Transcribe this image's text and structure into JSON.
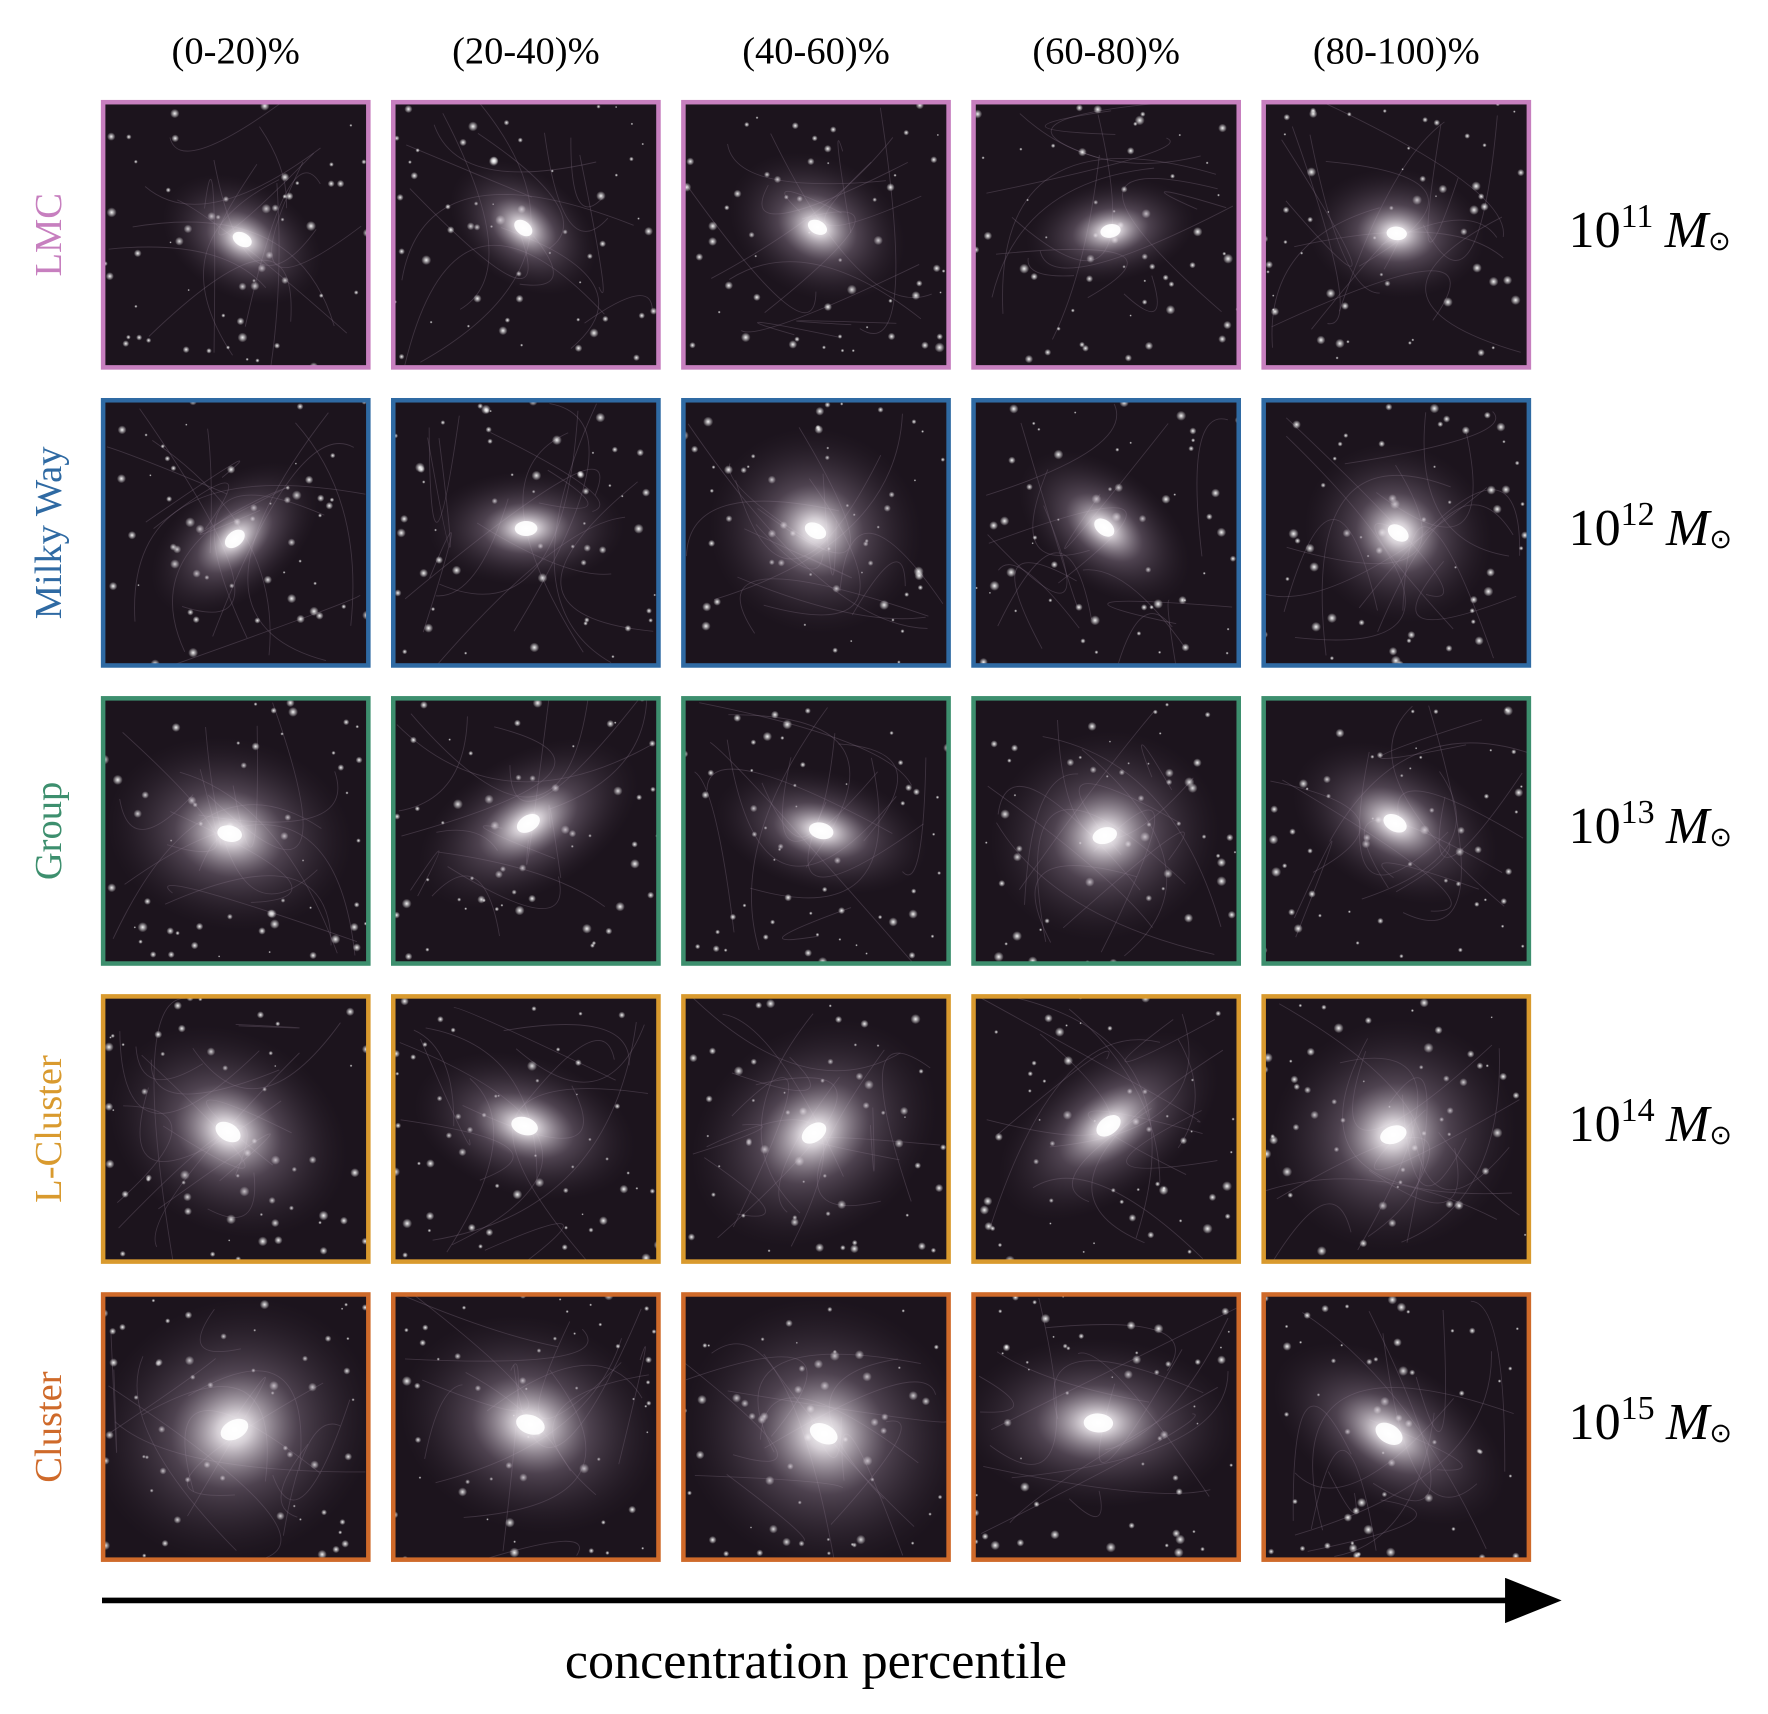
{
  "columns": [
    "(0-20)%",
    "(20-40)%",
    "(40-60)%",
    "(60-80)%",
    "(80-100)%"
  ],
  "rows": [
    {
      "label": "LMC",
      "color": "#c77fbf",
      "mass": {
        "base": "10",
        "exponent": "11",
        "unit": "M",
        "subscript": "⊙"
      }
    },
    {
      "label": "Milky Way",
      "color": "#2f6aa3",
      "mass": {
        "base": "10",
        "exponent": "12",
        "unit": "M",
        "subscript": "⊙"
      }
    },
    {
      "label": "Group",
      "color": "#3d8f6e",
      "mass": {
        "base": "10",
        "exponent": "13",
        "unit": "M",
        "subscript": "⊙"
      }
    },
    {
      "label": "L-Cluster",
      "color": "#d99a2e",
      "mass": {
        "base": "10",
        "exponent": "14",
        "unit": "M",
        "subscript": "⊙"
      }
    },
    {
      "label": "Cluster",
      "color": "#cf6a2a",
      "mass": {
        "base": "10",
        "exponent": "15",
        "unit": "M",
        "subscript": "⊙"
      }
    }
  ],
  "axis_label": "concentration percentile"
}
